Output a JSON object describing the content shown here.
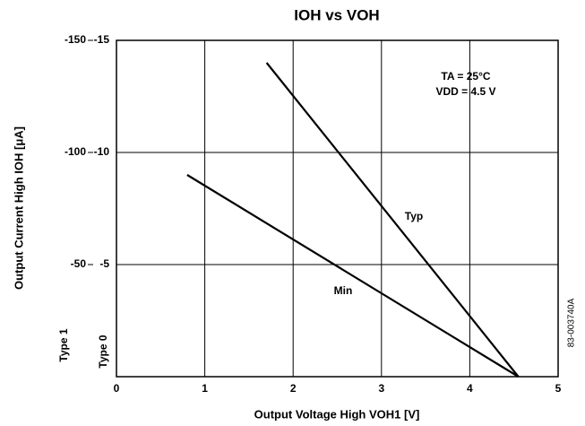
{
  "chart_data": {
    "type": "line",
    "title": "IOH vs VOH",
    "xlabel": "Output Voltage High VOH1 [V]",
    "ylabel": "Output Current High IOH [μA]",
    "y_axis_name": "Type 0",
    "y2_axis_name": "Type 1",
    "annotations": [
      "TA = 25°C",
      "VDD = 4.5 V"
    ],
    "figure_code": "83-003740A",
    "xlim": [
      0,
      5
    ],
    "xticks": [
      0,
      1,
      2,
      3,
      4,
      5
    ],
    "ylim": [
      0,
      -15
    ],
    "yticks": [
      -15,
      -10,
      -5
    ],
    "y2lim": [
      0,
      -150
    ],
    "y2ticks": [
      -150,
      -100,
      -50
    ],
    "grid": true,
    "series": [
      {
        "name": "Typ",
        "color": "#000000",
        "x": [
          1.7,
          4.55
        ],
        "values": [
          -14,
          0
        ]
      },
      {
        "name": "Min",
        "color": "#000000",
        "x": [
          0.8,
          4.55
        ],
        "values": [
          -9,
          0
        ]
      }
    ]
  }
}
